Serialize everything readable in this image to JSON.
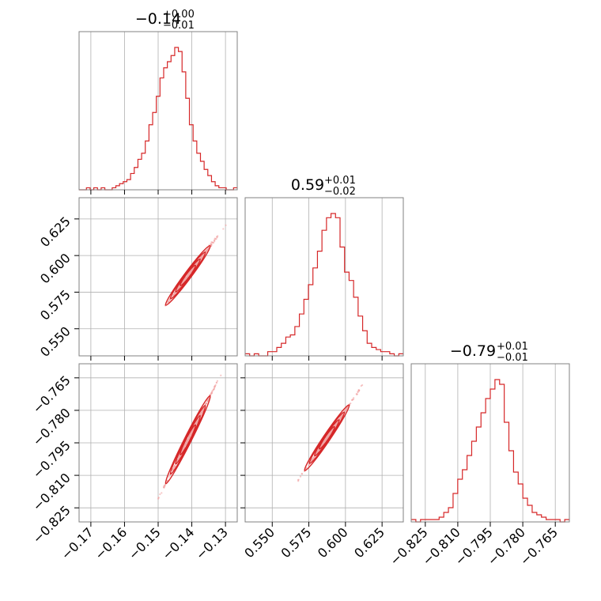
{
  "figure": {
    "panel_titles": [
      {
        "main": "−0.14",
        "sup": "+0.00",
        "sub": "−0.01"
      },
      {
        "main": "0.59",
        "sup": "+0.01",
        "sub": "−0.02"
      },
      {
        "main": "−0.79",
        "sup": "+0.01",
        "sub": "−0.01"
      }
    ]
  },
  "colors": {
    "line": "#d62728",
    "points": "#f2a3a3",
    "grid": "#b0b0b0",
    "frame": "#808080"
  },
  "chart_data": {
    "type": "corner",
    "parameters": [
      {
        "range": [
          -0.1735,
          -0.1265
        ],
        "ticks": [
          -0.17,
          -0.16,
          -0.15,
          -0.14,
          -0.13
        ],
        "tick_labels": [
          "−0.17",
          "−0.16",
          "−0.15",
          "−0.14",
          "−0.13"
        ],
        "median": -0.14
      },
      {
        "range": [
          0.5315,
          0.6395
        ],
        "ticks": [
          0.55,
          0.575,
          0.6,
          0.625
        ],
        "tick_labels": [
          "0.550",
          "0.575",
          "0.600",
          "0.625"
        ],
        "median": 0.59
      },
      {
        "range": [
          -0.8315,
          -0.7585
        ],
        "ticks": [
          -0.825,
          -0.81,
          -0.795,
          -0.78,
          -0.765
        ],
        "tick_labels": [
          "−0.825",
          "−0.810",
          "−0.795",
          "−0.780",
          "−0.765"
        ],
        "median": -0.79
      }
    ],
    "histograms": [
      {
        "param": 0,
        "counts": [
          0,
          0,
          1,
          0,
          1,
          0,
          1,
          0,
          0,
          1,
          2,
          3,
          4,
          5,
          8,
          11,
          15,
          18,
          24,
          32,
          38,
          46,
          55,
          60,
          63,
          66,
          70,
          68,
          58,
          45,
          32,
          24,
          18,
          14,
          10,
          7,
          4,
          2,
          1,
          1,
          0,
          0,
          1
        ]
      },
      {
        "param": 1,
        "counts": [
          1,
          0,
          1,
          0,
          0,
          2,
          2,
          4,
          6,
          9,
          10,
          14,
          20,
          27,
          34,
          42,
          50,
          60,
          66,
          68,
          66,
          52,
          40,
          36,
          28,
          19,
          12,
          6,
          4,
          3,
          2,
          2,
          1,
          0,
          1
        ]
      },
      {
        "param": 2,
        "counts": [
          1,
          0,
          1,
          1,
          1,
          1,
          2,
          4,
          6,
          12,
          18,
          22,
          28,
          34,
          40,
          46,
          52,
          56,
          60,
          58,
          42,
          30,
          21,
          16,
          10,
          7,
          4,
          3,
          2,
          1,
          1,
          1,
          0,
          1
        ]
      }
    ],
    "correlations": [
      {
        "x_param": 0,
        "y_param": 1,
        "slope": 3.08,
        "intercept": 1.0212
      },
      {
        "x_param": 0,
        "y_param": 2,
        "slope": 3.08,
        "intercept": -0.3588
      },
      {
        "x_param": 1,
        "y_param": 2,
        "slope": 1.0,
        "intercept": -1.38
      }
    ],
    "grid": true
  }
}
